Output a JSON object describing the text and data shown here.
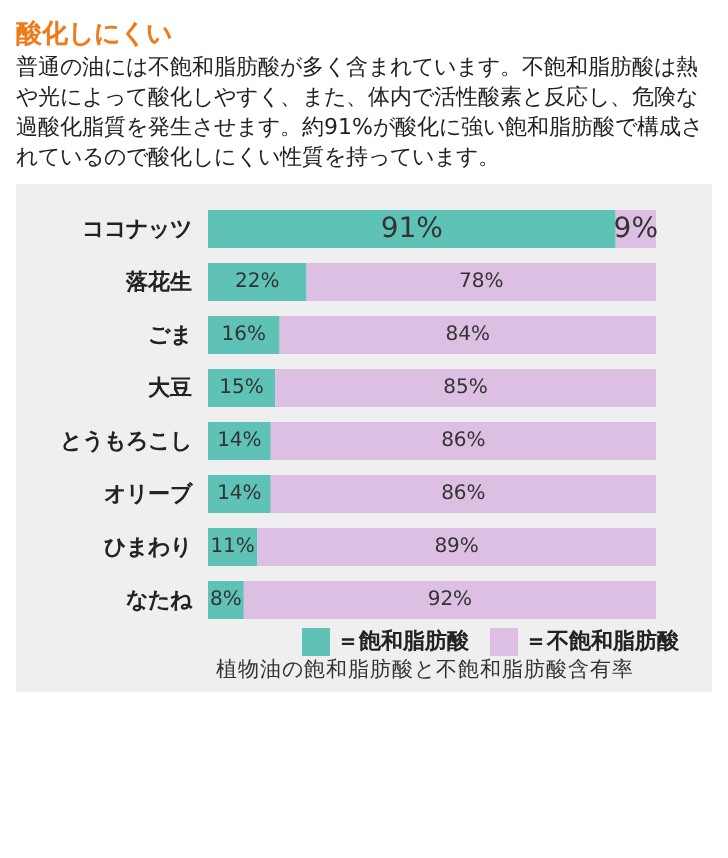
{
  "chart_data": {
    "type": "bar",
    "orientation": "horizontal",
    "stacked": true,
    "title": "酸化しにくい",
    "subtitle": "普通の油には不飽和脂肪酸が多く含まれています。不飽和脂肪酸は熱や光によって酸化しやすく、また、体内で活性酸素と反応し、危険な過酸化脂質を発生させます。約91%が酸化に強い飽和脂肪酸で構成されているので酸化しにくい性質を持っています。",
    "categories": [
      "ココナッツ",
      "落花生",
      "ごま",
      "大豆",
      "とうもろこし",
      "オリーブ",
      "ひまわり",
      "なたね"
    ],
    "series": [
      {
        "name": "＝飽和脂肪酸",
        "color": "#5ec3b6",
        "values": [
          91,
          22,
          16,
          15,
          14,
          14,
          11,
          8
        ],
        "value_labels": [
          "91%",
          "22%",
          "16%",
          "15%",
          "14%",
          "14%",
          "11%",
          "8%"
        ]
      },
      {
        "name": "＝不飽和脂肪酸",
        "color": "#dcbfe2",
        "values": [
          9,
          78,
          84,
          85,
          86,
          86,
          89,
          92
        ],
        "value_labels": [
          "9%",
          "78%",
          "84%",
          "85%",
          "86%",
          "86%",
          "89%",
          "92%"
        ]
      }
    ],
    "xlim": [
      0,
      100
    ],
    "tick_labels": "y",
    "legend": "bottom",
    "annotations": [
      "植物油の飽和脂肪酸と不飽和脂肪酸含有率"
    ]
  }
}
